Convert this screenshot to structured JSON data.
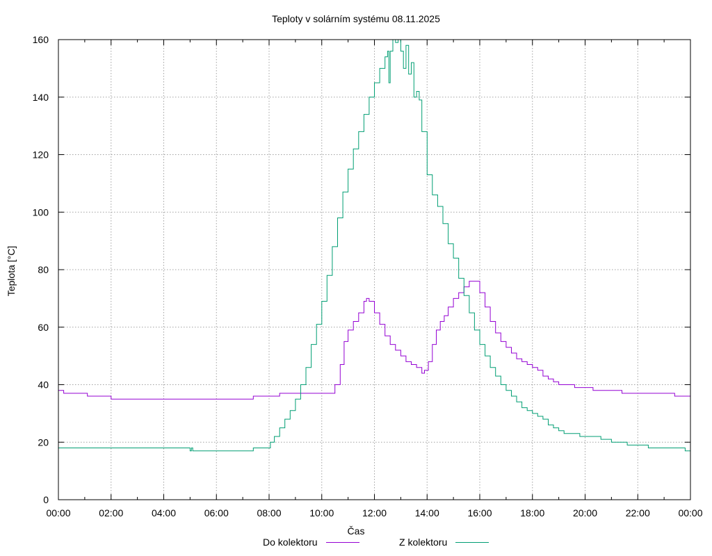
{
  "chart_data": {
    "type": "line",
    "title": "Teploty v solárním systému 08.11.2025",
    "xlabel": "Čas",
    "ylabel": "Teplota [°C]",
    "xlim": [
      0,
      24
    ],
    "ylim": [
      0,
      160
    ],
    "grid": true,
    "x_ticks": [
      0,
      2,
      4,
      6,
      8,
      10,
      12,
      14,
      16,
      18,
      20,
      22,
      24
    ],
    "x_tick_labels": [
      "00:00",
      "02:00",
      "04:00",
      "06:00",
      "08:00",
      "10:00",
      "12:00",
      "14:00",
      "16:00",
      "18:00",
      "20:00",
      "22:00",
      "00:00"
    ],
    "y_ticks": [
      0,
      20,
      40,
      60,
      80,
      100,
      120,
      140,
      160
    ],
    "y_tick_labels": [
      "0",
      "20",
      "40",
      "60",
      "80",
      "100",
      "120",
      "140",
      "160"
    ],
    "legend_position": "bottom",
    "series": [
      {
        "name": "Do kolektoru",
        "color": "#9400d3",
        "points": [
          [
            0,
            38
          ],
          [
            0.15,
            38
          ],
          [
            0.2,
            37
          ],
          [
            1.05,
            37
          ],
          [
            1.1,
            36
          ],
          [
            1.9,
            36
          ],
          [
            2.0,
            35
          ],
          [
            7.3,
            35
          ],
          [
            7.4,
            36
          ],
          [
            8.3,
            36
          ],
          [
            8.4,
            37
          ],
          [
            10.3,
            37
          ],
          [
            10.5,
            40
          ],
          [
            10.7,
            47
          ],
          [
            10.85,
            55
          ],
          [
            11.0,
            59
          ],
          [
            11.2,
            62
          ],
          [
            11.4,
            65
          ],
          [
            11.6,
            69
          ],
          [
            11.7,
            70
          ],
          [
            11.8,
            69
          ],
          [
            12.0,
            65
          ],
          [
            12.2,
            61
          ],
          [
            12.4,
            57
          ],
          [
            12.6,
            54
          ],
          [
            12.8,
            52
          ],
          [
            13.0,
            50
          ],
          [
            13.2,
            48
          ],
          [
            13.4,
            47
          ],
          [
            13.6,
            46
          ],
          [
            13.8,
            44
          ],
          [
            13.9,
            45
          ],
          [
            14.05,
            48
          ],
          [
            14.2,
            54
          ],
          [
            14.35,
            59
          ],
          [
            14.5,
            62
          ],
          [
            14.65,
            64
          ],
          [
            14.8,
            67
          ],
          [
            15.0,
            70
          ],
          [
            15.2,
            72
          ],
          [
            15.4,
            74
          ],
          [
            15.6,
            76
          ],
          [
            15.8,
            76
          ],
          [
            16.0,
            72
          ],
          [
            16.2,
            67
          ],
          [
            16.4,
            62
          ],
          [
            16.6,
            58
          ],
          [
            16.8,
            55
          ],
          [
            17.0,
            53
          ],
          [
            17.2,
            51
          ],
          [
            17.4,
            49
          ],
          [
            17.6,
            48
          ],
          [
            17.8,
            47
          ],
          [
            18.0,
            46
          ],
          [
            18.2,
            45
          ],
          [
            18.4,
            43
          ],
          [
            18.6,
            42
          ],
          [
            18.8,
            41
          ],
          [
            19.0,
            40
          ],
          [
            19.4,
            40
          ],
          [
            19.6,
            39
          ],
          [
            20.2,
            39
          ],
          [
            20.3,
            38
          ],
          [
            21.3,
            38
          ],
          [
            21.4,
            37
          ],
          [
            23.3,
            37
          ],
          [
            23.4,
            36
          ],
          [
            24,
            36
          ]
        ]
      },
      {
        "name": "Z kolektoru",
        "color": "#009e73",
        "points": [
          [
            0,
            18
          ],
          [
            4.95,
            18
          ],
          [
            5.0,
            17
          ],
          [
            5.05,
            18
          ],
          [
            5.1,
            17
          ],
          [
            7.3,
            17
          ],
          [
            7.4,
            18
          ],
          [
            7.95,
            18
          ],
          [
            8.05,
            20
          ],
          [
            8.2,
            22
          ],
          [
            8.4,
            25
          ],
          [
            8.6,
            28
          ],
          [
            8.8,
            31
          ],
          [
            9.0,
            35
          ],
          [
            9.2,
            40
          ],
          [
            9.4,
            46
          ],
          [
            9.6,
            54
          ],
          [
            9.8,
            61
          ],
          [
            10.0,
            69
          ],
          [
            10.2,
            78
          ],
          [
            10.4,
            88
          ],
          [
            10.6,
            98
          ],
          [
            10.8,
            107
          ],
          [
            11.0,
            115
          ],
          [
            11.2,
            122
          ],
          [
            11.4,
            128
          ],
          [
            11.6,
            134
          ],
          [
            11.8,
            140
          ],
          [
            12.0,
            145
          ],
          [
            12.2,
            150
          ],
          [
            12.4,
            154
          ],
          [
            12.5,
            156
          ],
          [
            12.55,
            145
          ],
          [
            12.6,
            156
          ],
          [
            12.7,
            160
          ],
          [
            12.8,
            159
          ],
          [
            12.9,
            160
          ],
          [
            13.0,
            156
          ],
          [
            13.1,
            150
          ],
          [
            13.2,
            158
          ],
          [
            13.3,
            148
          ],
          [
            13.4,
            152
          ],
          [
            13.5,
            140
          ],
          [
            13.6,
            142
          ],
          [
            13.7,
            139
          ],
          [
            13.8,
            128
          ],
          [
            14.0,
            113
          ],
          [
            14.2,
            106
          ],
          [
            14.4,
            102
          ],
          [
            14.6,
            96
          ],
          [
            14.8,
            89
          ],
          [
            15.0,
            84
          ],
          [
            15.2,
            77
          ],
          [
            15.4,
            71
          ],
          [
            15.6,
            65
          ],
          [
            15.8,
            59
          ],
          [
            16.0,
            54
          ],
          [
            16.2,
            50
          ],
          [
            16.4,
            46
          ],
          [
            16.6,
            43
          ],
          [
            16.8,
            40
          ],
          [
            17.0,
            38
          ],
          [
            17.2,
            36
          ],
          [
            17.4,
            34
          ],
          [
            17.6,
            32
          ],
          [
            17.8,
            31
          ],
          [
            18.0,
            30
          ],
          [
            18.2,
            29
          ],
          [
            18.4,
            28
          ],
          [
            18.6,
            26
          ],
          [
            18.8,
            25
          ],
          [
            19.0,
            24
          ],
          [
            19.2,
            23
          ],
          [
            19.6,
            23
          ],
          [
            19.8,
            22
          ],
          [
            20.4,
            22
          ],
          [
            20.6,
            21
          ],
          [
            20.8,
            21
          ],
          [
            21.0,
            20
          ],
          [
            21.4,
            20
          ],
          [
            21.6,
            19
          ],
          [
            22.2,
            19
          ],
          [
            22.4,
            18
          ],
          [
            23.7,
            18
          ],
          [
            23.8,
            17
          ],
          [
            24,
            17
          ]
        ]
      }
    ]
  }
}
